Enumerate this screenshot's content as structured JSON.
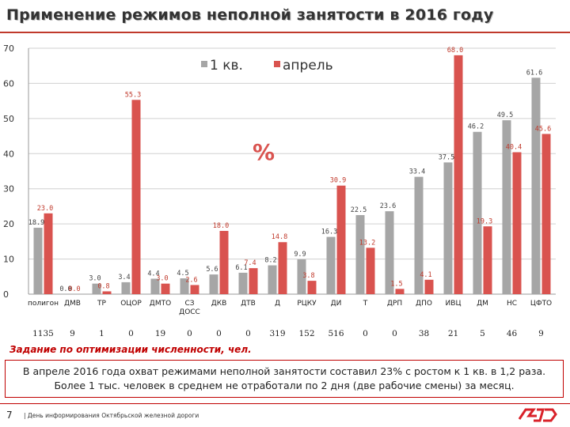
{
  "title": "Применение режимов неполной занятости в 2016 году",
  "quota_caption": "Задание по оптимизации численности, чел.",
  "note": {
    "line1": "В апреле 2016 года охват режимами неполной занятости составил 23% с ростом к 1 кв. в 1,2 раза.",
    "line2": "Более 1 тыс. человек в среднем не отработали по 2 дня (две рабочие смены) за месяц."
  },
  "footer": {
    "page_number": "7",
    "text": "| День информирования Октябрьской железной дороги"
  },
  "colors": {
    "q1": "#a6a6a6",
    "april": "#d9534f",
    "accent": "#c00000"
  },
  "chart_data": {
    "type": "bar",
    "ylim": [
      0,
      70
    ],
    "yticks": [
      "0",
      "10",
      "20",
      "30",
      "40",
      "50",
      "60",
      "70"
    ],
    "unit_label": "%",
    "legend": [
      "1 кв.",
      "апрель"
    ],
    "categories": [
      "полигон",
      "ДМВ",
      "ТР",
      "ОЦОР",
      "ДМТО",
      "СЗ ДОСС",
      "ДКВ",
      "ДТВ",
      "Д",
      "РЦКУ",
      "ДИ",
      "Т",
      "ДРП",
      "ДПО",
      "ИВЦ",
      "ДМ",
      "НС",
      "ЦФТО"
    ],
    "category_lines": [
      [
        "полигон"
      ],
      [
        "ДМВ"
      ],
      [
        "ТР"
      ],
      [
        "ОЦОР"
      ],
      [
        "ДМТО"
      ],
      [
        "СЗ",
        "ДОСС"
      ],
      [
        "ДКВ"
      ],
      [
        "ДТВ"
      ],
      [
        "Д"
      ],
      [
        "РЦКУ"
      ],
      [
        "ДИ"
      ],
      [
        "Т"
      ],
      [
        "ДРП"
      ],
      [
        "ДПО"
      ],
      [
        "ИВЦ"
      ],
      [
        "ДМ"
      ],
      [
        "НС"
      ],
      [
        "ЦФТО"
      ]
    ],
    "series": [
      {
        "name": "1 кв.",
        "values": [
          18.9,
          0.0,
          3.0,
          3.4,
          4.4,
          4.5,
          5.6,
          6.1,
          8.2,
          9.9,
          16.3,
          22.5,
          23.6,
          33.4,
          37.5,
          46.2,
          49.5,
          61.6
        ],
        "labels": [
          "18.9",
          "0.0",
          "3.0",
          "3.4",
          "4.4",
          "4.5",
          "5.6",
          "6.1",
          "8.2",
          "9.9",
          "16.3",
          "22.5",
          "23.6",
          "33.4",
          "37.5",
          "46.2",
          "49.5",
          "61.6"
        ]
      },
      {
        "name": "апрель",
        "values": [
          23.0,
          0.0,
          0.8,
          55.3,
          3.0,
          2.6,
          18.0,
          7.4,
          14.8,
          3.8,
          30.9,
          13.2,
          1.5,
          4.1,
          68.0,
          19.3,
          40.4,
          45.6
        ],
        "labels": [
          "23.0",
          "0.0",
          "0.8",
          "55.3",
          "3.0",
          "2.6",
          "18.0",
          "7.4",
          "14.8",
          "3.8",
          "30.9",
          "13.2",
          "1.5",
          "4.1",
          "68.0",
          "19.3",
          "40.4",
          "45.6"
        ]
      }
    ],
    "quota": [
      "1135",
      "9",
      "1",
      "0",
      "19",
      "0",
      "0",
      "0",
      "319",
      "152",
      "516",
      "0",
      "0",
      "38",
      "21",
      "5",
      "46",
      "9"
    ]
  }
}
